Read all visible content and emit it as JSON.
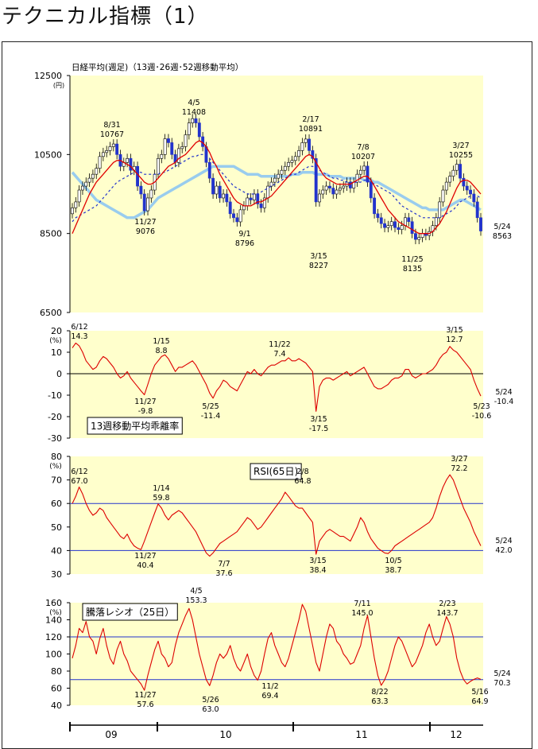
{
  "page": {
    "title": "テクニカル指標（1）"
  },
  "colors": {
    "panel_bg": "#ffffcc",
    "price_up": "#ffffff",
    "price_down": "#2233cc",
    "ma13": "#e00000",
    "ma26": "#2233cc",
    "ma52": "#99ccee",
    "indicator": "#dd0000",
    "ref_line": "#2233cc"
  },
  "x_axis": {
    "labels": [
      "09",
      "10",
      "11",
      "12"
    ]
  },
  "chart_data": [
    {
      "type": "candlestick",
      "title": "日経平均(週足)（13週･26週･52週移動平均）",
      "ylabel": "(円)",
      "ylim": [
        6500,
        12500
      ],
      "yticks": [
        "12500",
        "10500",
        "8500",
        "6500"
      ],
      "annotations": [
        {
          "date": "8/31",
          "value": "10767"
        },
        {
          "date": "4/5",
          "value": "11408"
        },
        {
          "date": "2/17",
          "value": "10891"
        },
        {
          "date": "7/8",
          "value": "10207"
        },
        {
          "date": "3/27",
          "value": "10255"
        },
        {
          "date": "11/27",
          "value": "9076"
        },
        {
          "date": "9/1",
          "value": "8796"
        },
        {
          "date": "3/15",
          "value": "8227"
        },
        {
          "date": "11/25",
          "value": "8135"
        },
        {
          "date": "5/24",
          "value": "8563"
        }
      ],
      "closes": [
        9150,
        9300,
        9600,
        9700,
        9800,
        9900,
        10000,
        10150,
        10450,
        10550,
        10600,
        10700,
        10767,
        10500,
        10200,
        10300,
        10400,
        10100,
        10200,
        9700,
        9500,
        9076,
        9400,
        9600,
        10000,
        10400,
        10500,
        10900,
        10800,
        10500,
        10300,
        10650,
        10700,
        11000,
        11300,
        11408,
        11300,
        10950,
        10700,
        10300,
        9900,
        9500,
        9700,
        9400,
        9500,
        9300,
        9000,
        8900,
        8796,
        9100,
        9200,
        9400,
        9350,
        9500,
        9250,
        9150,
        9400,
        9700,
        9800,
        9900,
        10000,
        10100,
        10200,
        10300,
        10350,
        10450,
        10600,
        10800,
        10891,
        10600,
        10400,
        9300,
        9500,
        9600,
        9700,
        9650,
        9500,
        9600,
        9650,
        9700,
        9800,
        9650,
        9800,
        10000,
        10100,
        10207,
        9800,
        9400,
        9000,
        8900,
        8750,
        8650,
        8700,
        8800,
        8650,
        8600,
        8700,
        8900,
        8800,
        8500,
        8350,
        8400,
        8500,
        8450,
        8550,
        8700,
        8900,
        9300,
        9600,
        9800,
        9950,
        10100,
        10255,
        9900,
        9700,
        9600,
        9500,
        9300,
        8900,
        8563
      ],
      "ma13": [
        8500,
        8700,
        8900,
        9100,
        9300,
        9500,
        9650,
        9800,
        9900,
        10000,
        10100,
        10200,
        10300,
        10350,
        10350,
        10300,
        10250,
        10200,
        10100,
        10000,
        9900,
        9800,
        9750,
        9750,
        9800,
        9900,
        10000,
        10100,
        10200,
        10250,
        10300,
        10400,
        10450,
        10500,
        10600,
        10700,
        10800,
        10850,
        10800,
        10700,
        10550,
        10350,
        10200,
        10000,
        9850,
        9700,
        9550,
        9400,
        9300,
        9250,
        9200,
        9200,
        9200,
        9250,
        9300,
        9300,
        9350,
        9400,
        9450,
        9550,
        9650,
        9750,
        9850,
        9950,
        10050,
        10150,
        10250,
        10350,
        10450,
        10500,
        10450,
        10300,
        10150,
        10000,
        9900,
        9850,
        9800,
        9750,
        9750,
        9750,
        9750,
        9750,
        9800,
        9850,
        9900,
        9950,
        9950,
        9850,
        9700,
        9550,
        9400,
        9250,
        9100,
        9000,
        8900,
        8800,
        8750,
        8700,
        8650,
        8600,
        8550,
        8500,
        8500,
        8500,
        8500,
        8550,
        8650,
        8750,
        8900,
        9050,
        9250,
        9450,
        9650,
        9800,
        9850,
        9850,
        9800,
        9700,
        9600,
        9500
      ],
      "ma26": [
        8800,
        8900,
        8950,
        9000,
        9050,
        9100,
        9150,
        9200,
        9300,
        9400,
        9500,
        9600,
        9700,
        9800,
        9850,
        9900,
        9950,
        10000,
        10050,
        10050,
        10050,
        10000,
        10000,
        10000,
        10000,
        10000,
        10050,
        10050,
        10100,
        10150,
        10200,
        10250,
        10300,
        10350,
        10400,
        10450,
        10450,
        10500,
        10500,
        10450,
        10400,
        10300,
        10200,
        10100,
        10000,
        9900,
        9800,
        9700,
        9650,
        9600,
        9550,
        9500,
        9500,
        9500,
        9500,
        9550,
        9600,
        9650,
        9700,
        9750,
        9800,
        9850,
        9900,
        9950,
        10000,
        10000,
        10050,
        10100,
        10150,
        10200,
        10200,
        10150,
        10100,
        10050,
        10000,
        9950,
        9900,
        9900,
        9850,
        9850,
        9800,
        9800,
        9800,
        9800,
        9800,
        9850,
        9850,
        9800,
        9750,
        9700,
        9650,
        9600,
        9550,
        9500,
        9400,
        9300,
        9200,
        9150,
        9100,
        9050,
        9000,
        8950,
        8900,
        8900,
        8900,
        8900,
        8900,
        8900,
        8950,
        9000,
        9050,
        9100,
        9200,
        9300,
        9350,
        9400,
        9450,
        9450,
        9450,
        9400
      ],
      "ma52": [
        10050,
        9950,
        9850,
        9750,
        9650,
        9550,
        9450,
        9350,
        9300,
        9250,
        9200,
        9150,
        9100,
        9050,
        9000,
        8950,
        8900,
        8900,
        8900,
        8950,
        9000,
        9050,
        9100,
        9200,
        9300,
        9400,
        9450,
        9500,
        9550,
        9600,
        9650,
        9700,
        9750,
        9800,
        9850,
        9900,
        9950,
        10000,
        10050,
        10100,
        10150,
        10200,
        10200,
        10200,
        10200,
        10200,
        10200,
        10200,
        10150,
        10100,
        10050,
        10000,
        10000,
        10000,
        10000,
        9950,
        9950,
        9950,
        9950,
        9950,
        9950,
        9950,
        9950,
        9950,
        10000,
        10000,
        10000,
        10050,
        10050,
        10050,
        10050,
        10000,
        10000,
        10000,
        10000,
        9950,
        9950,
        9950,
        9950,
        9900,
        9900,
        9900,
        9900,
        9900,
        9900,
        9850,
        9850,
        9850,
        9800,
        9800,
        9750,
        9700,
        9650,
        9600,
        9550,
        9500,
        9450,
        9400,
        9350,
        9300,
        9250,
        9200,
        9150,
        9150,
        9100,
        9100,
        9100,
        9100,
        9100,
        9150,
        9200,
        9250,
        9300,
        9350,
        9350,
        9300,
        9250,
        9200,
        9150,
        9100
      ]
    },
    {
      "type": "line",
      "title": "13週移動平均乖離率",
      "ylabel": "(%)",
      "ylim": [
        -30,
        20
      ],
      "yticks": [
        "20",
        "10",
        "0",
        "-10",
        "-20",
        "-30"
      ],
      "annotations": [
        {
          "date": "6/12",
          "value": "14.3"
        },
        {
          "date": "1/15",
          "value": "8.8"
        },
        {
          "date": "11/22",
          "value": "7.4"
        },
        {
          "date": "3/15",
          "value": "12.7"
        },
        {
          "date": "11/27",
          "value": "-9.8"
        },
        {
          "date": "5/25",
          "value": "-11.4"
        },
        {
          "date": "3/15",
          "value": "-17.5"
        },
        {
          "date": "5/23",
          "value": "-10.6"
        },
        {
          "date": "5/24",
          "value": "-10.4"
        }
      ],
      "values": [
        12,
        14.3,
        13,
        10,
        6,
        4,
        2,
        3,
        6,
        8,
        7,
        5,
        3,
        0,
        -2,
        -1,
        1,
        -2,
        -4,
        -6,
        -8,
        -9.8,
        -5,
        0,
        4,
        6,
        8,
        8.8,
        7,
        4,
        1,
        3,
        3,
        4,
        5,
        6,
        4,
        1,
        -2,
        -5,
        -9,
        -11.4,
        -8,
        -6,
        -3,
        -4,
        -6,
        -7,
        -8,
        -5,
        -2,
        1,
        0,
        2,
        0,
        -1,
        1,
        3,
        4,
        4,
        5,
        6,
        6,
        7.4,
        6,
        6,
        7,
        6,
        5,
        3,
        1,
        -17.5,
        -6,
        -3,
        -2,
        -2,
        -3,
        -2,
        -1,
        0,
        1,
        -1,
        0,
        1,
        2,
        3,
        0,
        -3,
        -6,
        -7,
        -7,
        -6,
        -5,
        -3,
        -2,
        -2,
        -1,
        2,
        2,
        -1,
        -2,
        -1,
        0,
        0,
        1,
        2,
        4,
        7,
        9,
        10,
        12.7,
        11,
        10,
        8,
        6,
        4,
        2,
        -3,
        -7,
        -10.4
      ]
    },
    {
      "type": "line",
      "title": "RSI(65日)",
      "ylabel": "(%)",
      "ylim": [
        30,
        80
      ],
      "yticks": [
        "80",
        "70",
        "60",
        "50",
        "40",
        "30"
      ],
      "reference_lines": [
        60,
        40
      ],
      "annotations": [
        {
          "date": "6/12",
          "value": "67.0"
        },
        {
          "date": "1/14",
          "value": "59.8"
        },
        {
          "date": "2/8",
          "value": "64.8"
        },
        {
          "date": "3/27",
          "value": "72.2"
        },
        {
          "date": "11/27",
          "value": "40.4"
        },
        {
          "date": "7/7",
          "value": "37.6"
        },
        {
          "date": "3/15",
          "value": "38.4"
        },
        {
          "date": "10/5",
          "value": "38.7"
        },
        {
          "date": "5/24",
          "value": "42.0"
        }
      ],
      "values": [
        60,
        63,
        67.0,
        64,
        60,
        57,
        55,
        56,
        58,
        57,
        54,
        52,
        50,
        48,
        46,
        45,
        47,
        44,
        42,
        41,
        40.4,
        44,
        48,
        52,
        56,
        59.8,
        58,
        55,
        53,
        55,
        56,
        57,
        56,
        54,
        52,
        50,
        48,
        45,
        42,
        39,
        37.6,
        39,
        41,
        43,
        44,
        45,
        46,
        47,
        48,
        50,
        52,
        54,
        53,
        51,
        49,
        50,
        52,
        54,
        56,
        58,
        60,
        62,
        64.8,
        63,
        61,
        59,
        58,
        58,
        56,
        54,
        52,
        38.4,
        44,
        46,
        48,
        49,
        48,
        47,
        46,
        46,
        45,
        44,
        47,
        50,
        54,
        52,
        48,
        45,
        43,
        41,
        40,
        39,
        38.7,
        40,
        42,
        43,
        44,
        45,
        46,
        47,
        48,
        49,
        50,
        51,
        52,
        54,
        58,
        63,
        67,
        70,
        72.2,
        70,
        66,
        62,
        58,
        55,
        52,
        48,
        45,
        42.0
      ]
    },
    {
      "type": "line",
      "title": "騰落レシオ（25日）",
      "ylabel": "(%)",
      "ylim": [
        40,
        160
      ],
      "yticks": [
        "160",
        "140",
        "120",
        "100",
        "80",
        "60",
        "40"
      ],
      "reference_lines": [
        120,
        70
      ],
      "annotations": [
        {
          "date": "4/5",
          "value": "153.3"
        },
        {
          "date": "7/11",
          "value": "145.0"
        },
        {
          "date": "2/23",
          "value": "143.7"
        },
        {
          "date": "11/27",
          "value": "57.6"
        },
        {
          "date": "5/26",
          "value": "63.0"
        },
        {
          "date": "11/2",
          "value": "69.4"
        },
        {
          "date": "8/22",
          "value": "63.3"
        },
        {
          "date": "5/16",
          "value": "64.9"
        },
        {
          "date": "5/24",
          "value": "70.3"
        }
      ],
      "values": [
        95,
        110,
        130,
        125,
        138,
        120,
        115,
        100,
        118,
        130,
        110,
        95,
        88,
        105,
        115,
        100,
        92,
        80,
        75,
        70,
        65,
        57.6,
        75,
        90,
        105,
        115,
        100,
        95,
        85,
        90,
        110,
        125,
        135,
        145,
        153.3,
        140,
        120,
        100,
        85,
        70,
        63.0,
        75,
        90,
        100,
        95,
        100,
        110,
        95,
        85,
        80,
        90,
        100,
        85,
        75,
        69.4,
        80,
        100,
        118,
        125,
        110,
        100,
        90,
        85,
        95,
        110,
        125,
        140,
        158,
        150,
        130,
        110,
        90,
        80,
        100,
        120,
        135,
        130,
        115,
        110,
        100,
        95,
        88,
        90,
        100,
        110,
        130,
        145.0,
        120,
        95,
        75,
        63.3,
        70,
        80,
        95,
        110,
        120,
        115,
        105,
        95,
        85,
        90,
        100,
        110,
        125,
        135,
        120,
        110,
        115,
        130,
        143.7,
        135,
        120,
        95,
        80,
        70,
        64.9,
        68,
        70.3,
        72,
        70.3
      ]
    }
  ]
}
